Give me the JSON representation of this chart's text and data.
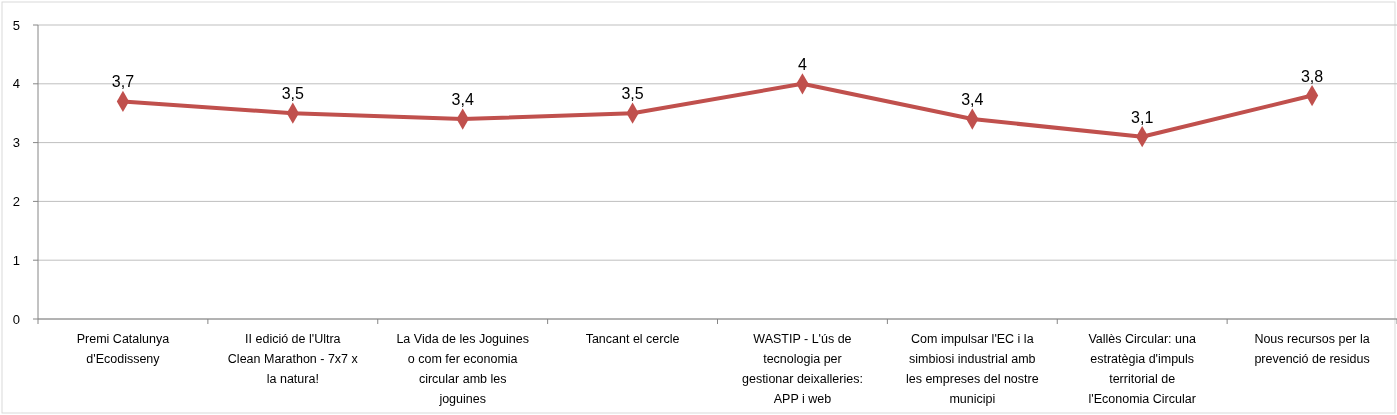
{
  "chart_data": {
    "type": "line",
    "categories": [
      "Premi Catalunya d'Ecodisseny",
      "II edició de l'Ultra Clean Marathon - 7x7 x la natura!",
      "La Vida de les Joguines o com fer economia circular amb les joguines",
      "Tancant el cercle",
      "WASTIP - L'ús de tecnologia per gestionar deixalleries: APP i web",
      "Com impulsar l'EC i la simbiosi industrial amb les empreses del nostre municipi",
      "Vallès Circular: una estratègia d'impuls territorial de l'Economia Circular",
      "Nous recursos per la prevenció de residus"
    ],
    "series": [
      {
        "color": "#c0504d",
        "values": [
          3.7,
          3.5,
          3.4,
          3.5,
          4,
          3.4,
          3.1,
          3.8
        ],
        "value_labels": [
          "3,7",
          "3,5",
          "3,4",
          "3,5",
          "4",
          "3,4",
          "3,1",
          "3,8"
        ]
      }
    ],
    "ylim": [
      0,
      5
    ],
    "yticks": [
      0,
      1,
      2,
      3,
      4,
      5
    ],
    "grid": "y",
    "marker": "diamond"
  }
}
